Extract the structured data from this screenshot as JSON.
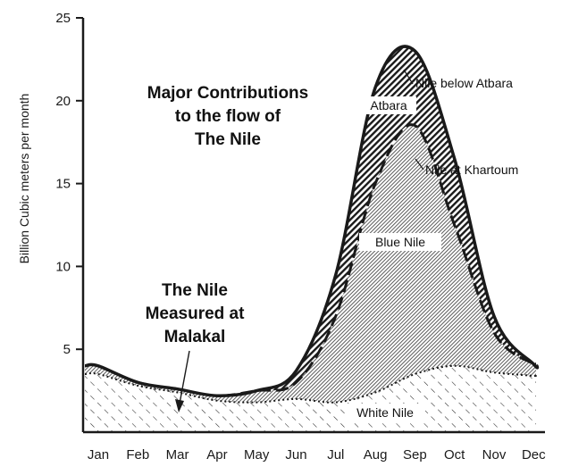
{
  "chart_data": {
    "type": "area",
    "title_lines": [
      "Major Contributions",
      "to the flow of",
      "The Nile"
    ],
    "ylabel": "Billion Cubic meters per month",
    "xlabel": "",
    "x": [
      "Jan",
      "Feb",
      "Mar",
      "Apr",
      "May",
      "Jun",
      "Jul",
      "Aug",
      "Sep",
      "Oct",
      "Nov",
      "Dec"
    ],
    "ylim": [
      0,
      25
    ],
    "yticks": [
      5,
      10,
      15,
      20,
      25
    ],
    "grid": false,
    "series": [
      {
        "name": "Nile below Atbara",
        "values": [
          4.0,
          3.0,
          2.6,
          2.2,
          2.5,
          3.7,
          9.5,
          20.8,
          23.0,
          16.5,
          7.0,
          4.1
        ],
        "label_month": "Sep"
      },
      {
        "name": "Nile at Khartoum",
        "values": [
          4.0,
          3.0,
          2.6,
          2.2,
          2.5,
          3.0,
          7.0,
          15.0,
          18.5,
          12.5,
          6.0,
          4.1
        ],
        "label_month": "Oct"
      },
      {
        "name": "White Nile",
        "values": [
          3.5,
          2.8,
          2.4,
          1.9,
          1.8,
          2.0,
          1.8,
          2.4,
          3.5,
          4.0,
          3.6,
          3.4
        ]
      }
    ],
    "area_labels": [
      "Atbara",
      "Blue Nile",
      "White Nile"
    ],
    "annotation": {
      "lines": [
        "The Nile",
        "Measured at",
        "Malakal"
      ],
      "arrow_month": "Mar",
      "arrow_value": 1.0
    },
    "colors": {
      "ink": "#1a1a1a",
      "fill_light": "#c9c9c9",
      "paper": "#ffffff"
    }
  }
}
